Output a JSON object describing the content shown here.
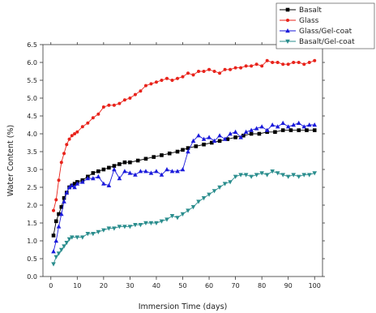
{
  "chart_data": {
    "type": "line",
    "title": "",
    "xlabel": "Immersion Time (days)",
    "ylabel": "Water Content (%)",
    "xlim": [
      -3,
      103
    ],
    "ylim": [
      0,
      6.5
    ],
    "xticks": [
      0,
      10,
      20,
      30,
      40,
      50,
      60,
      70,
      80,
      90,
      100
    ],
    "yticks": [
      0.0,
      0.5,
      1.0,
      1.5,
      2.0,
      2.5,
      3.0,
      3.5,
      4.0,
      4.5,
      5.0,
      5.5,
      6.0,
      6.5
    ],
    "grid": false,
    "legend_position": "top-right",
    "series": [
      {
        "name": "Basalt",
        "color": "#000000",
        "marker": "square",
        "x": [
          1,
          2,
          3,
          4,
          5,
          6,
          7,
          8,
          9,
          10,
          12,
          14,
          16,
          18,
          20,
          22,
          24,
          26,
          28,
          30,
          33,
          36,
          39,
          42,
          45,
          48,
          50,
          52,
          55,
          58,
          61,
          64,
          67,
          70,
          73,
          76,
          79,
          82,
          85,
          88,
          91,
          94,
          97,
          100
        ],
        "y": [
          1.15,
          1.55,
          1.75,
          1.95,
          2.2,
          2.35,
          2.5,
          2.55,
          2.6,
          2.65,
          2.7,
          2.8,
          2.9,
          2.95,
          3.0,
          3.05,
          3.1,
          3.15,
          3.2,
          3.2,
          3.25,
          3.3,
          3.35,
          3.4,
          3.45,
          3.5,
          3.55,
          3.6,
          3.65,
          3.7,
          3.75,
          3.8,
          3.85,
          3.9,
          3.95,
          4.0,
          4.0,
          4.05,
          4.05,
          4.1,
          4.1,
          4.1,
          4.1,
          4.1
        ]
      },
      {
        "name": "Glass",
        "color": "#e8231b",
        "marker": "circle",
        "x": [
          1,
          2,
          3,
          4,
          5,
          6,
          7,
          8,
          9,
          10,
          12,
          14,
          16,
          18,
          20,
          22,
          24,
          26,
          28,
          30,
          32,
          34,
          36,
          38,
          40,
          42,
          44,
          46,
          48,
          50,
          52,
          54,
          56,
          58,
          60,
          62,
          64,
          66,
          68,
          70,
          72,
          74,
          76,
          78,
          80,
          82,
          84,
          86,
          88,
          90,
          92,
          94,
          96,
          98,
          100
        ],
        "y": [
          1.85,
          2.15,
          2.7,
          3.2,
          3.45,
          3.7,
          3.85,
          3.95,
          4.0,
          4.05,
          4.2,
          4.3,
          4.45,
          4.55,
          4.75,
          4.8,
          4.8,
          4.85,
          4.95,
          5.0,
          5.1,
          5.2,
          5.35,
          5.4,
          5.45,
          5.5,
          5.55,
          5.5,
          5.55,
          5.6,
          5.7,
          5.65,
          5.75,
          5.75,
          5.8,
          5.75,
          5.7,
          5.8,
          5.8,
          5.85,
          5.85,
          5.9,
          5.9,
          5.95,
          5.9,
          6.05,
          6.0,
          6.0,
          5.95,
          5.95,
          6.0,
          6.0,
          5.95,
          6.0,
          6.05
        ]
      },
      {
        "name": "Glass/Gel-coat",
        "color": "#1a1adb",
        "marker": "triangle-up",
        "x": [
          1,
          2,
          3,
          4,
          5,
          6,
          7,
          8,
          9,
          10,
          12,
          14,
          16,
          18,
          20,
          22,
          24,
          26,
          28,
          30,
          32,
          34,
          36,
          38,
          40,
          42,
          44,
          46,
          48,
          50,
          52,
          54,
          56,
          58,
          60,
          62,
          64,
          66,
          68,
          70,
          72,
          74,
          76,
          78,
          80,
          82,
          84,
          86,
          88,
          90,
          92,
          94,
          96,
          98,
          100
        ],
        "y": [
          0.7,
          1.0,
          1.4,
          1.75,
          2.1,
          2.35,
          2.5,
          2.55,
          2.5,
          2.6,
          2.65,
          2.75,
          2.75,
          2.8,
          2.6,
          2.55,
          3.0,
          2.75,
          2.95,
          2.9,
          2.85,
          2.95,
          2.95,
          2.9,
          2.95,
          2.85,
          3.0,
          2.95,
          2.95,
          3.0,
          3.5,
          3.8,
          3.95,
          3.85,
          3.9,
          3.8,
          3.95,
          3.85,
          4.0,
          4.05,
          3.9,
          4.05,
          4.1,
          4.15,
          4.2,
          4.1,
          4.25,
          4.2,
          4.3,
          4.2,
          4.25,
          4.3,
          4.2,
          4.25,
          4.25
        ]
      },
      {
        "name": "Basalt/Gel-coat",
        "color": "#2a8d8d",
        "marker": "triangle-down",
        "x": [
          1,
          2,
          3,
          4,
          5,
          6,
          7,
          8,
          10,
          12,
          14,
          16,
          18,
          20,
          22,
          24,
          26,
          28,
          30,
          32,
          34,
          36,
          38,
          40,
          42,
          44,
          46,
          48,
          50,
          52,
          54,
          56,
          58,
          60,
          62,
          64,
          66,
          68,
          70,
          72,
          74,
          76,
          78,
          80,
          82,
          84,
          86,
          88,
          90,
          92,
          94,
          96,
          98,
          100
        ],
        "y": [
          0.35,
          0.55,
          0.65,
          0.75,
          0.85,
          0.95,
          1.05,
          1.1,
          1.1,
          1.1,
          1.2,
          1.2,
          1.25,
          1.3,
          1.35,
          1.35,
          1.4,
          1.4,
          1.4,
          1.45,
          1.45,
          1.5,
          1.5,
          1.5,
          1.55,
          1.6,
          1.7,
          1.65,
          1.75,
          1.85,
          1.95,
          2.1,
          2.2,
          2.3,
          2.4,
          2.5,
          2.6,
          2.65,
          2.8,
          2.85,
          2.85,
          2.8,
          2.85,
          2.9,
          2.85,
          2.95,
          2.9,
          2.85,
          2.8,
          2.85,
          2.8,
          2.85,
          2.85,
          2.9
        ]
      }
    ]
  }
}
